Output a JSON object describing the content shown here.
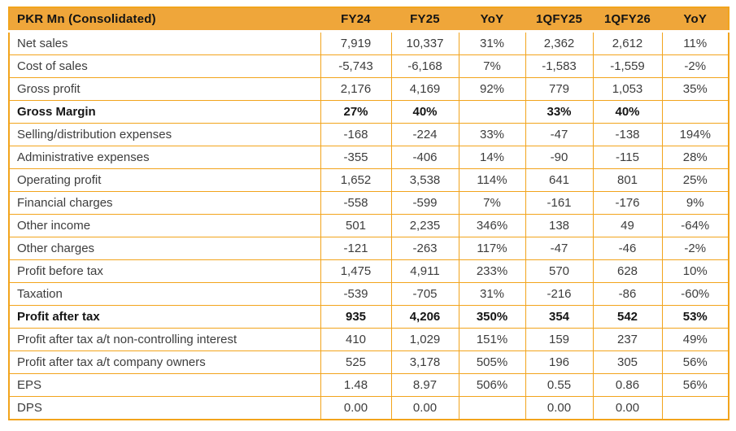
{
  "table": {
    "title": "PKR Mn (Consolidated)",
    "header_columns": [
      "FY24",
      "FY25",
      "YoY",
      "1QFY25",
      "1QFY26",
      "YoY"
    ],
    "rows": [
      {
        "label": "Net sales",
        "bold": false,
        "values": [
          "7,919",
          "10,337",
          "31%",
          "2,362",
          "2,612",
          "11%"
        ]
      },
      {
        "label": "Cost of sales",
        "bold": false,
        "values": [
          "-5,743",
          "-6,168",
          "7%",
          "-1,583",
          "-1,559",
          "-2%"
        ]
      },
      {
        "label": "Gross profit",
        "bold": false,
        "values": [
          "2,176",
          "4,169",
          "92%",
          "779",
          "1,053",
          "35%"
        ]
      },
      {
        "label": "Gross Margin",
        "bold": true,
        "values": [
          "27%",
          "40%",
          "",
          "33%",
          "40%",
          ""
        ]
      },
      {
        "label": "Selling/distribution expenses",
        "bold": false,
        "values": [
          "-168",
          "-224",
          "33%",
          "-47",
          "-138",
          "194%"
        ]
      },
      {
        "label": "Administrative expenses",
        "bold": false,
        "values": [
          "-355",
          "-406",
          "14%",
          "-90",
          "-115",
          "28%"
        ]
      },
      {
        "label": "Operating profit",
        "bold": false,
        "values": [
          "1,652",
          "3,538",
          "114%",
          "641",
          "801",
          "25%"
        ]
      },
      {
        "label": "Financial charges",
        "bold": false,
        "values": [
          "-558",
          "-599",
          "7%",
          "-161",
          "-176",
          "9%"
        ]
      },
      {
        "label": "Other income",
        "bold": false,
        "values": [
          "501",
          "2,235",
          "346%",
          "138",
          "49",
          "-64%"
        ]
      },
      {
        "label": "Other charges",
        "bold": false,
        "values": [
          "-121",
          "-263",
          "117%",
          "-47",
          "-46",
          "-2%"
        ]
      },
      {
        "label": "Profit before tax",
        "bold": false,
        "values": [
          "1,475",
          "4,911",
          "233%",
          "570",
          "628",
          "10%"
        ]
      },
      {
        "label": "Taxation",
        "bold": false,
        "values": [
          "-539",
          "-705",
          "31%",
          "-216",
          "-86",
          "-60%"
        ]
      },
      {
        "label": "Profit after tax",
        "bold": true,
        "values": [
          "935",
          "4,206",
          "350%",
          "354",
          "542",
          "53%"
        ]
      },
      {
        "label": "Profit after tax a/t non-controlling interest",
        "bold": false,
        "values": [
          "410",
          "1,029",
          "151%",
          "159",
          "237",
          "49%"
        ]
      },
      {
        "label": "Profit after tax a/t company owners",
        "bold": false,
        "values": [
          "525",
          "3,178",
          "505%",
          "196",
          "305",
          "56%"
        ]
      },
      {
        "label": "EPS",
        "bold": false,
        "values": [
          "1.48",
          "8.97",
          "506%",
          "0.55",
          "0.86",
          "56%"
        ]
      },
      {
        "label": "DPS",
        "bold": false,
        "values": [
          "0.00",
          "0.00",
          "",
          "0.00",
          "0.00",
          ""
        ]
      }
    ],
    "colors": {
      "header_bg": "#EFA63A",
      "grid_border": "#F2A41C",
      "body_text": "#3D3D3D",
      "bold_text": "#141414"
    },
    "column_names_semantic": [
      "fy24",
      "fy25",
      "yoy-fy",
      "1qfy25",
      "1qfy26",
      "yoy-1q"
    ]
  }
}
